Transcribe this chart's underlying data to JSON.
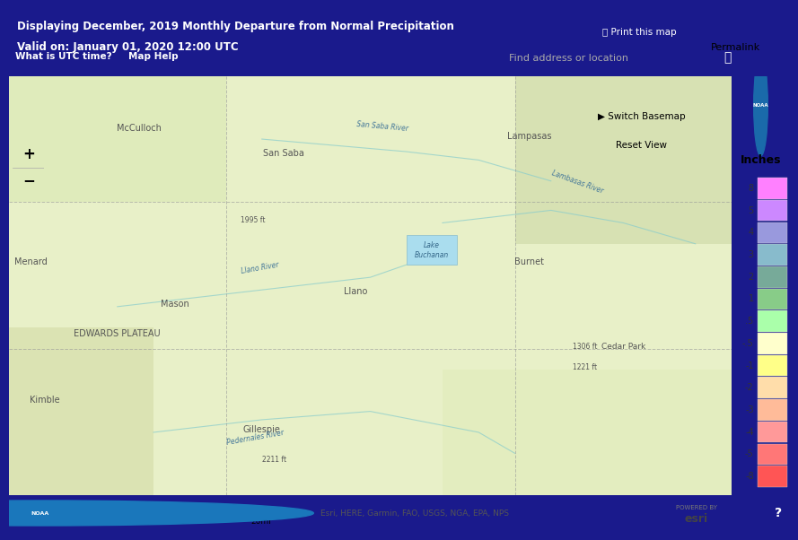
{
  "header_bg": "#1a1a8c",
  "header_text1": "Displaying December, 2019 Monthly Departure from Normal Precipitation",
  "header_text2": "Valid on: January 01, 2020 12:00 UTC",
  "btn1": "What is UTC time?",
  "btn2": "Map Help",
  "btn_color": "#00aadd",
  "search_placeholder": "Find address or location",
  "print_text": "Print this map",
  "permalink_text": "Permalink",
  "legend_title": "Inches",
  "legend_labels": [
    "8",
    "5",
    "4",
    "3",
    "2",
    "1",
    ".5",
    "-.5",
    "-1",
    "-2",
    "-3",
    "-4",
    "-5",
    "-8"
  ],
  "legend_colors": [
    "#ff80ff",
    "#cc88ff",
    "#9999dd",
    "#88bbcc",
    "#77aa99",
    "#88cc88",
    "#aaffaa",
    "#ffffcc",
    "#ffff88",
    "#ffddaa",
    "#ffbb99",
    "#ff9999",
    "#ff7777",
    "#ff5555"
  ],
  "map_bg": "#e8f0c8",
  "noaa_logo_color": "#ffffff",
  "esri_text": "Esri, HERE, Garmin, FAO, USGS, NGA, EPA, NPS",
  "scale_text": "0       10      20mi",
  "powered_by": "POWERED BY",
  "zoom_plus": "+",
  "zoom_minus": "-",
  "place_labels": [
    "McCulloch",
    "San Saba",
    "Lampasas",
    "Menard",
    "Mason",
    "Llano",
    "Burnet",
    "EDWARDS PLATEAU",
    "Kimble",
    "Cedar Park",
    "Gillespie"
  ],
  "river_labels": [
    "San Saba River",
    "Lambasas River",
    "Llano River",
    "Pedernales River"
  ],
  "elev_labels": [
    "1995 ft",
    "1306 ft",
    "1221 ft",
    "2211 ft"
  ],
  "lake_label": "Lake\nBuchanan",
  "footer_bg": "#f0f0f0",
  "switch_basemap": "Switch Basemap",
  "reset_view": "Reset View"
}
